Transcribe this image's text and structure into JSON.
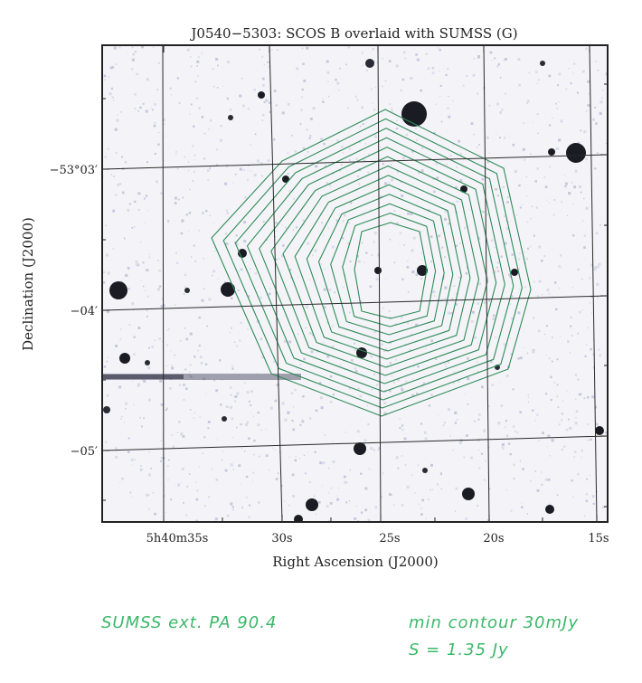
{
  "chart_data": {
    "type": "contour",
    "title": "J0540−5303: SCOS B overlaid with SUMSS (G)",
    "xlabel": "Right Ascension (J2000)",
    "ylabel": "Declination (J2000)",
    "x_ticks": [
      "5h40m35s",
      "30s",
      "25s",
      "20s",
      "15s"
    ],
    "y_ticks": [
      "−53°03′",
      "−04′",
      "−05′"
    ],
    "contour_color": "#2e8b57",
    "contour_levels": 13,
    "grid": true
  },
  "annotations": {
    "line1": "SUMSS ext. PA 90.4",
    "line2": "min contour 30mJy",
    "line3": "S = 1.35 Jy"
  }
}
